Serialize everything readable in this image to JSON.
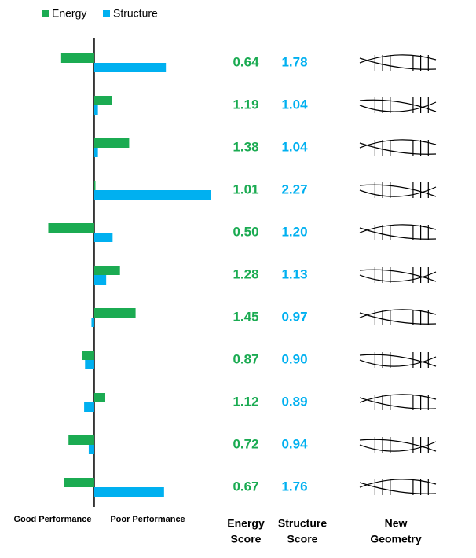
{
  "chart_data": {
    "type": "diverging-bar",
    "baseline": 1,
    "xlim": [
      0,
      2.3
    ],
    "series": [
      {
        "name": "Energy",
        "color": "#1bab52",
        "values": [
          0.64,
          1.19,
          1.38,
          1.01,
          0.5,
          1.28,
          1.45,
          0.87,
          1.12,
          0.72,
          0.67
        ],
        "value_labels": [
          "0.64",
          "1.19",
          "1.38",
          "1.01",
          "0.50",
          "1.28",
          "1.45",
          "0.87",
          "1.12",
          "0.72",
          "0.67"
        ]
      },
      {
        "name": "Structure",
        "color": "#00b0f0",
        "values": [
          1.78,
          1.04,
          1.04,
          2.27,
          1.2,
          1.13,
          0.97,
          0.9,
          0.89,
          0.94,
          1.76
        ],
        "value_labels": [
          "1.78",
          "1.04",
          "1.04",
          "2.27",
          "1.20",
          "1.13",
          "0.97",
          "0.90",
          "0.89",
          "0.94",
          "1.76"
        ]
      }
    ],
    "x_axis_labels": [
      "Good Performance",
      "Poor Performance"
    ],
    "column_headers": [
      [
        "Energy",
        "Score"
      ],
      [
        "Structure",
        "Score"
      ],
      [
        "New",
        "Geometry"
      ]
    ]
  }
}
